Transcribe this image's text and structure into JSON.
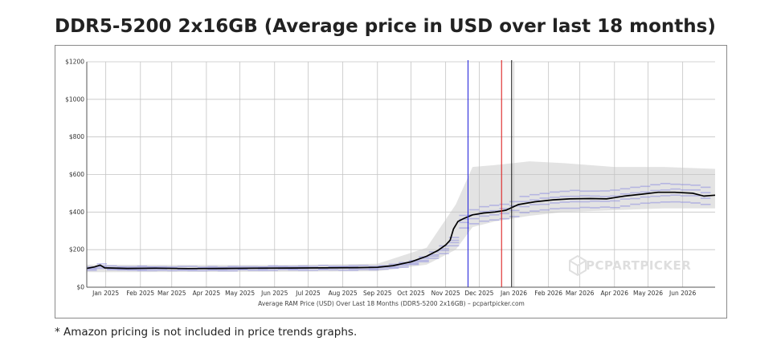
{
  "page": {
    "title": "DDR5-5200 2x16GB (Average price in USD over last 18 months)",
    "footnote": "* Amazon pricing is not included in price trends graphs."
  },
  "chart_data": {
    "type": "line",
    "caption": "Average RAM Price (USD) Over Last 18 Months (DDR5-5200 2x16GB) – pcpartpicker.com",
    "watermark": "PCPARTPICKER",
    "x_range": [
      "2024-12-15",
      "2026-06-30"
    ],
    "ylim": [
      0,
      1200
    ],
    "y_ticks": [
      {
        "value": 0,
        "label": "$0"
      },
      {
        "value": 200,
        "label": "$200"
      },
      {
        "value": 400,
        "label": "$400"
      },
      {
        "value": 600,
        "label": "$600"
      },
      {
        "value": 800,
        "label": "$800"
      },
      {
        "value": 1000,
        "label": "$1000"
      },
      {
        "value": 1200,
        "label": "$1200"
      }
    ],
    "x_ticks": [
      {
        "date": "2025-01-01",
        "label": "Jan 2025"
      },
      {
        "date": "2025-02-01",
        "label": "Feb 2025"
      },
      {
        "date": "2025-03-01",
        "label": "Mar 2025"
      },
      {
        "date": "2025-04-01",
        "label": "Apr 2025"
      },
      {
        "date": "2025-05-01",
        "label": "May 2025"
      },
      {
        "date": "2025-06-01",
        "label": "Jun 2025"
      },
      {
        "date": "2025-07-01",
        "label": "Jul 2025"
      },
      {
        "date": "2025-08-01",
        "label": "Aug 2025"
      },
      {
        "date": "2025-09-01",
        "label": "Sep 2025"
      },
      {
        "date": "2025-10-01",
        "label": "Oct 2025"
      },
      {
        "date": "2025-11-01",
        "label": "Nov 2025"
      },
      {
        "date": "2025-12-01",
        "label": "Dec 2025"
      },
      {
        "date": "2026-01-01",
        "label": "Jan 2026"
      },
      {
        "date": "2026-02-01",
        "label": "Feb 2026"
      },
      {
        "date": "2026-03-01",
        "label": "Mar 2026"
      },
      {
        "date": "2026-04-01",
        "label": "Apr 2026"
      },
      {
        "date": "2026-05-01",
        "label": "May 2026"
      },
      {
        "date": "2026-06-01",
        "label": "Jun 2026"
      }
    ],
    "grid": true,
    "colors": {
      "average_line": "#000000",
      "price_band": "#d9d9d9",
      "retailer_ranges": "#8f8fe0",
      "grid": "#c4c4c4",
      "marker_blue": "#2b2bdc",
      "marker_red": "#dd2222",
      "marker_black": "#222222"
    },
    "markers": [
      {
        "date": "2025-11-21",
        "color": "#2b2bdc"
      },
      {
        "date": "2025-12-21",
        "color": "#dd2222"
      },
      {
        "date": "2025-12-30",
        "color": "#222222"
      }
    ],
    "series": [
      {
        "values": [
          {
            "x": "2024-12-15",
            "y": 100
          },
          {
            "x": "2024-12-22",
            "y": 108
          },
          {
            "x": "2024-12-27",
            "y": 118
          },
          {
            "x": "2024-12-31",
            "y": 103
          },
          {
            "x": "2025-01-20",
            "y": 100
          },
          {
            "x": "2025-02-15",
            "y": 101
          },
          {
            "x": "2025-03-15",
            "y": 99
          },
          {
            "x": "2025-04-15",
            "y": 100
          },
          {
            "x": "2025-05-15",
            "y": 101
          },
          {
            "x": "2025-06-15",
            "y": 102
          },
          {
            "x": "2025-07-15",
            "y": 103
          },
          {
            "x": "2025-08-15",
            "y": 104
          },
          {
            "x": "2025-09-01",
            "y": 106
          },
          {
            "x": "2025-09-15",
            "y": 115
          },
          {
            "x": "2025-10-01",
            "y": 135
          },
          {
            "x": "2025-10-15",
            "y": 165
          },
          {
            "x": "2025-10-25",
            "y": 195
          },
          {
            "x": "2025-11-01",
            "y": 225
          },
          {
            "x": "2025-11-05",
            "y": 250
          },
          {
            "x": "2025-11-08",
            "y": 310
          },
          {
            "x": "2025-11-12",
            "y": 350
          },
          {
            "x": "2025-11-17",
            "y": 365
          },
          {
            "x": "2025-11-25",
            "y": 385
          },
          {
            "x": "2025-12-05",
            "y": 395
          },
          {
            "x": "2025-12-15",
            "y": 400
          },
          {
            "x": "2025-12-25",
            "y": 410
          },
          {
            "x": "2026-01-05",
            "y": 440
          },
          {
            "x": "2026-01-20",
            "y": 455
          },
          {
            "x": "2026-02-05",
            "y": 465
          },
          {
            "x": "2026-02-20",
            "y": 470
          },
          {
            "x": "2026-03-10",
            "y": 472
          },
          {
            "x": "2026-03-25",
            "y": 470
          },
          {
            "x": "2026-04-10",
            "y": 485
          },
          {
            "x": "2026-04-25",
            "y": 495
          },
          {
            "x": "2026-05-10",
            "y": 505
          },
          {
            "x": "2026-05-25",
            "y": 505
          },
          {
            "x": "2026-06-10",
            "y": 500
          },
          {
            "x": "2026-06-20",
            "y": 485
          },
          {
            "x": "2026-06-30",
            "y": 490
          }
        ]
      }
    ],
    "price_band": [
      {
        "x": "2024-12-15",
        "low": 80,
        "high": 120
      },
      {
        "x": "2025-06-01",
        "low": 82,
        "high": 118
      },
      {
        "x": "2025-09-01",
        "low": 85,
        "high": 125
      },
      {
        "x": "2025-10-15",
        "low": 120,
        "high": 210
      },
      {
        "x": "2025-11-10",
        "low": 200,
        "high": 440
      },
      {
        "x": "2025-11-25",
        "low": 320,
        "high": 640
      },
      {
        "x": "2025-12-15",
        "low": 350,
        "high": 650
      },
      {
        "x": "2026-01-15",
        "low": 380,
        "high": 670
      },
      {
        "x": "2026-02-15",
        "low": 400,
        "high": 660
      },
      {
        "x": "2026-04-01",
        "low": 410,
        "high": 640
      },
      {
        "x": "2026-05-15",
        "low": 420,
        "high": 640
      },
      {
        "x": "2026-06-30",
        "low": 420,
        "high": 630
      }
    ]
  }
}
